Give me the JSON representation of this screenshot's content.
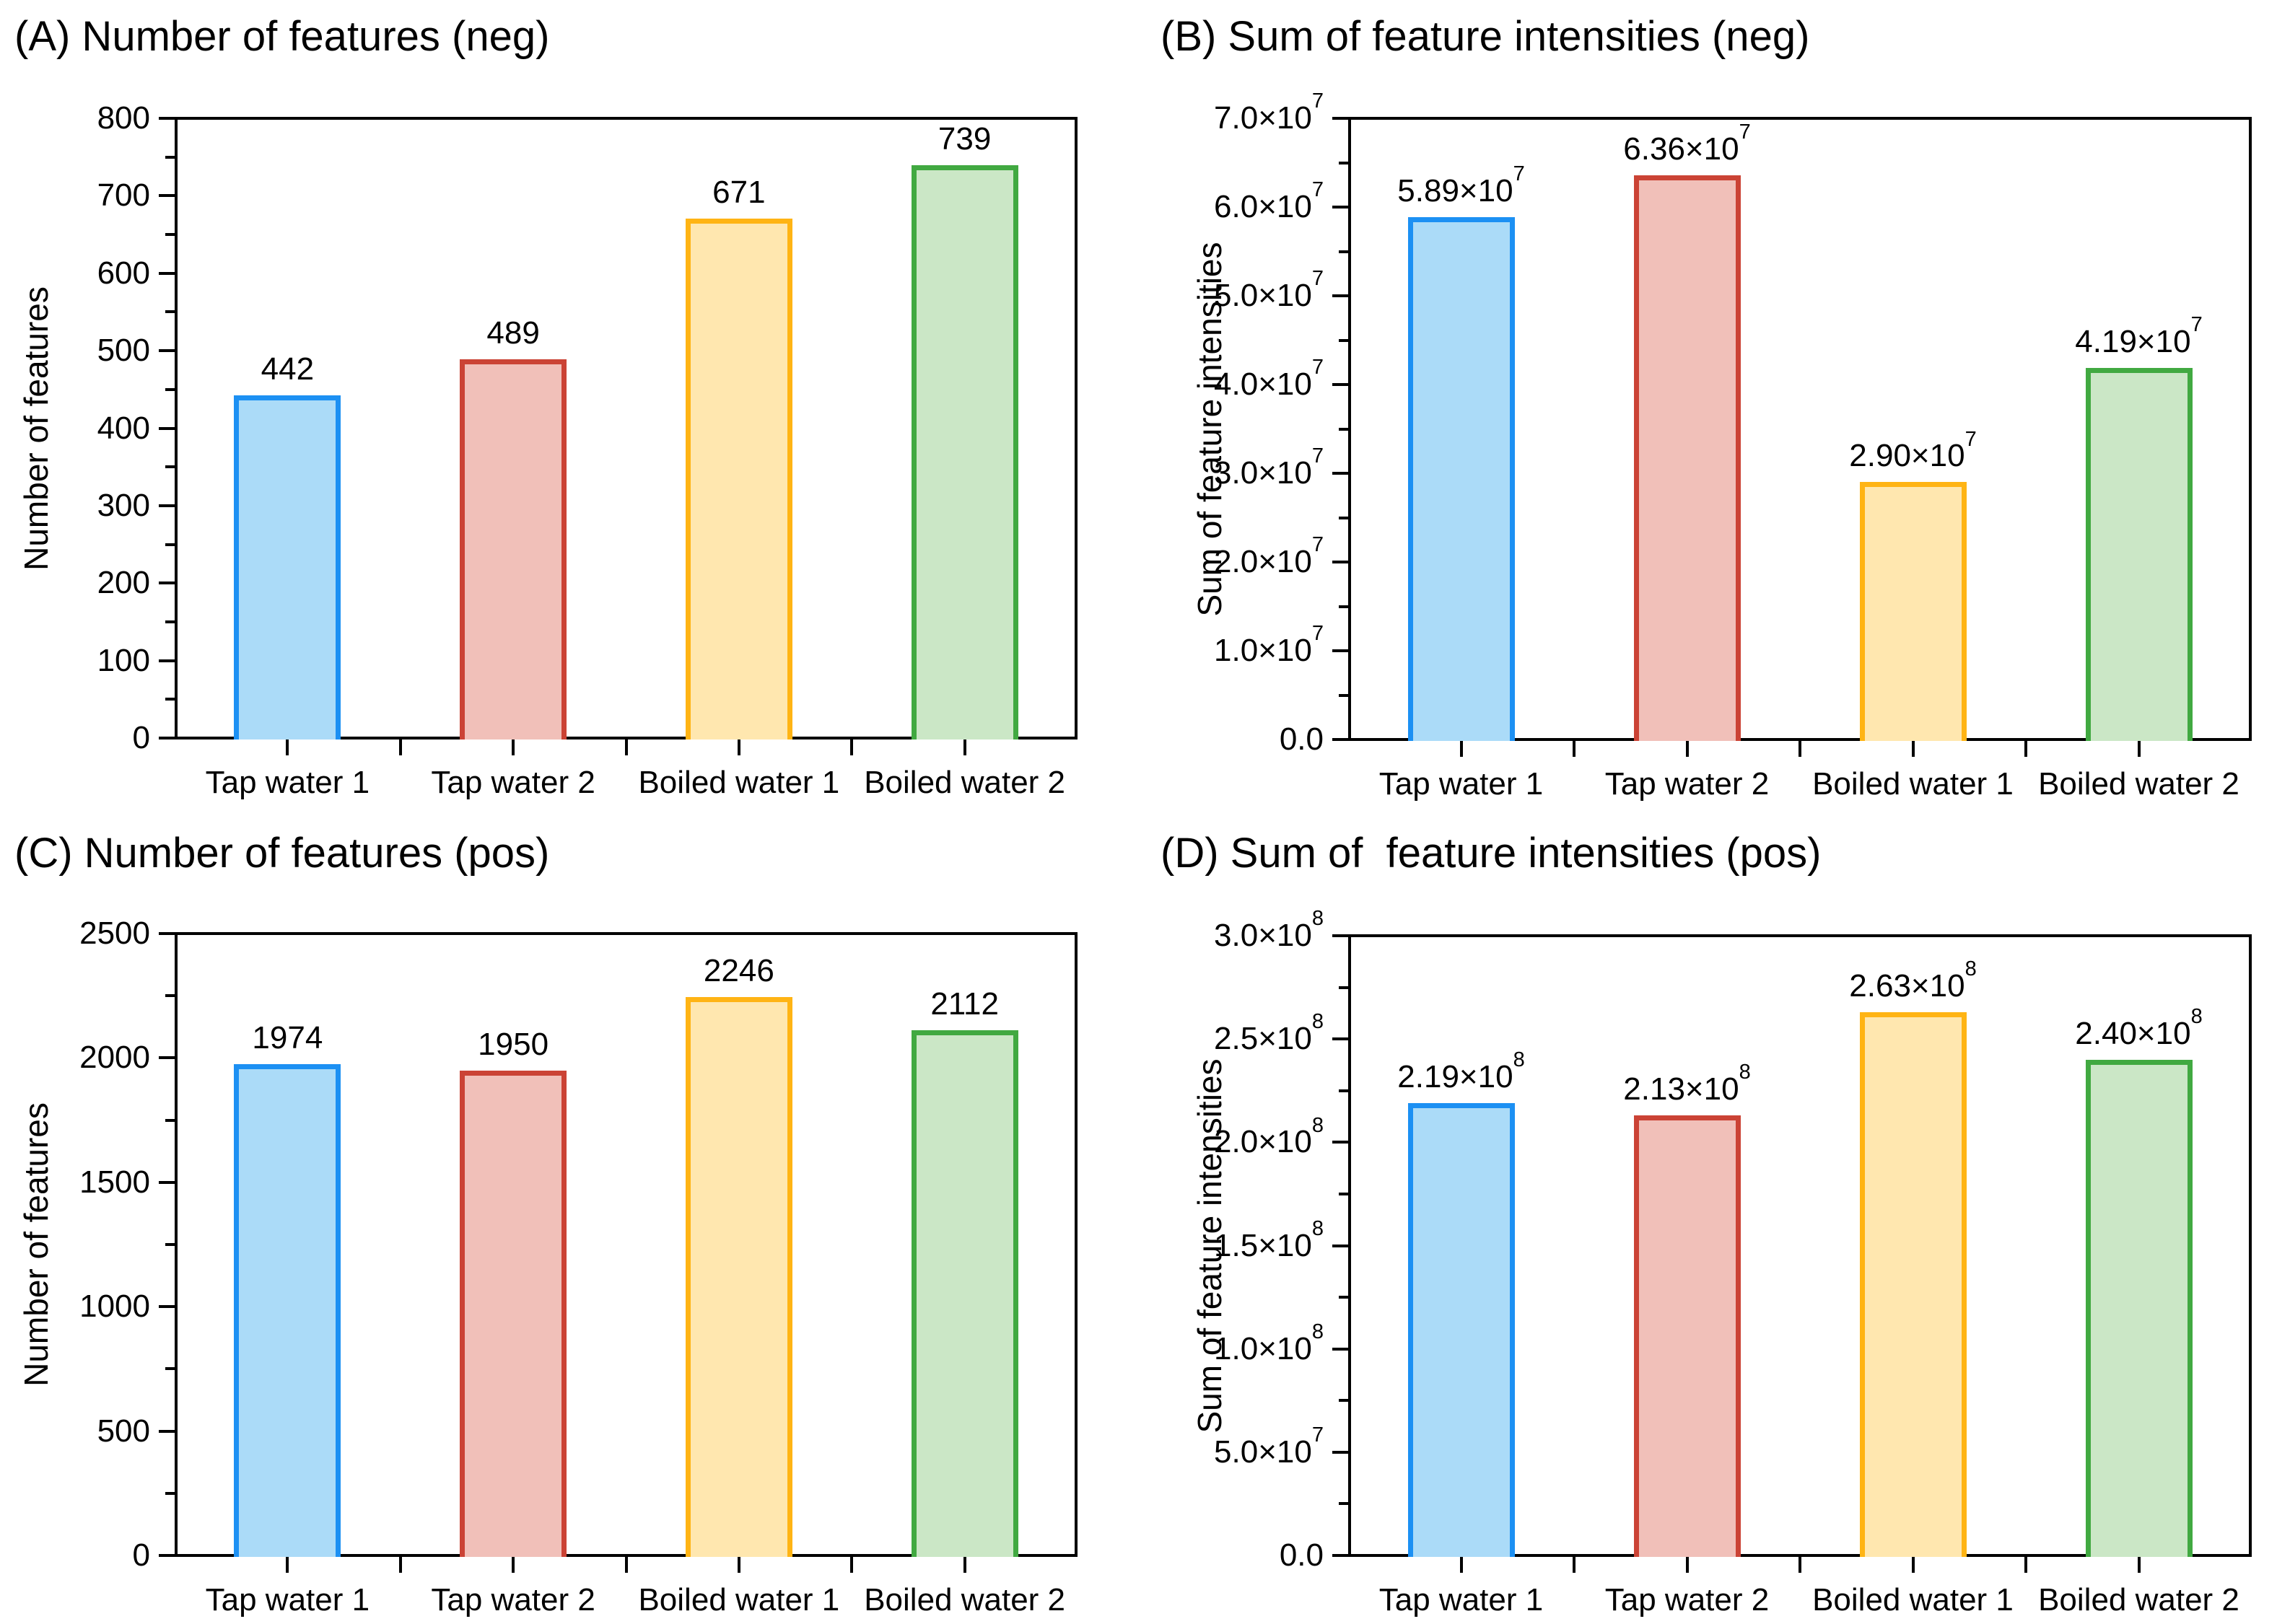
{
  "figure": {
    "background": "#FFFFFF",
    "text_color": "#000000",
    "axis_color": "#000000"
  },
  "series_colors": [
    {
      "category": "Tap water 1",
      "fill": "#ABDBF8",
      "border": "#1C90F3"
    },
    {
      "category": "Tap water 2",
      "fill": "#F1C0B9",
      "border": "#CB4335"
    },
    {
      "category": "Boiled water 1",
      "fill": "#FFE7AF",
      "border": "#FFB414"
    },
    {
      "category": "Boiled water 2",
      "fill": "#CBE7C6",
      "border": "#41A941"
    }
  ],
  "chart_data": [
    {
      "type": "bar",
      "panel_label": "A",
      "title": "(A) Number of features (neg)",
      "ylabel": "Number of features",
      "xlabel": "",
      "categories": [
        "Tap water 1",
        "Tap water 2",
        "Boiled water 1",
        "Boiled water 2"
      ],
      "values": [
        442,
        489,
        671,
        739
      ],
      "bar_labels": [
        "442",
        "489",
        "671",
        "739"
      ],
      "ylim": [
        0,
        800
      ],
      "ytick_step": 100,
      "yticks": [
        "0",
        "100",
        "200",
        "300",
        "400",
        "500",
        "600",
        "700",
        "800"
      ],
      "grid": false,
      "legend": "none"
    },
    {
      "type": "bar",
      "panel_label": "B",
      "title": "(B) Sum of feature intensities (neg)",
      "ylabel": "Sum of feature intensities",
      "xlabel": "",
      "categories": [
        "Tap water 1",
        "Tap water 2",
        "Boiled water 1",
        "Boiled water 2"
      ],
      "values": [
        58900000,
        63600000,
        29000000,
        41900000
      ],
      "bar_labels": [
        {
          "base": "5.89×10",
          "exp": "7"
        },
        {
          "base": "6.36×10",
          "exp": "7"
        },
        {
          "base": "2.90×10",
          "exp": "7"
        },
        {
          "base": "4.19×10",
          "exp": "7"
        }
      ],
      "ylim": [
        0,
        70000000
      ],
      "ytick_step": 10000000,
      "yticks": [
        "0.0",
        {
          "base": "1.0×10",
          "exp": "7"
        },
        {
          "base": "2.0×10",
          "exp": "7"
        },
        {
          "base": "3.0×10",
          "exp": "7"
        },
        {
          "base": "4.0×10",
          "exp": "7"
        },
        {
          "base": "5.0×10",
          "exp": "7"
        },
        {
          "base": "6.0×10",
          "exp": "7"
        },
        {
          "base": "7.0×10",
          "exp": "7"
        }
      ],
      "grid": false,
      "legend": "none"
    },
    {
      "type": "bar",
      "panel_label": "C",
      "title": "(C) Number of features (pos)",
      "ylabel": "Number of features",
      "xlabel": "",
      "categories": [
        "Tap water 1",
        "Tap water 2",
        "Boiled water 1",
        "Boiled water 2"
      ],
      "values": [
        1974,
        1950,
        2246,
        2112
      ],
      "bar_labels": [
        "1974",
        "1950",
        "2246",
        "2112"
      ],
      "ylim": [
        0,
        2500
      ],
      "ytick_step": 500,
      "yticks": [
        "0",
        "500",
        "1000",
        "1500",
        "2000",
        "2500"
      ],
      "grid": false,
      "legend": "none"
    },
    {
      "type": "bar",
      "panel_label": "D",
      "title": "(D) Sum of  feature intensities (pos)",
      "ylabel": "Sum of feature intensities",
      "xlabel": "",
      "categories": [
        "Tap water 1",
        "Tap water 2",
        "Boiled water 1",
        "Boiled water 2"
      ],
      "values": [
        219000000,
        213000000,
        263000000,
        240000000
      ],
      "bar_labels": [
        {
          "base": "2.19×10",
          "exp": "8"
        },
        {
          "base": "2.13×10",
          "exp": "8"
        },
        {
          "base": "2.63×10",
          "exp": "8"
        },
        {
          "base": "2.40×10",
          "exp": "8"
        }
      ],
      "ylim": [
        0,
        300000000
      ],
      "ytick_step": 50000000,
      "yticks": [
        "0.0",
        {
          "base": "5.0×10",
          "exp": "7"
        },
        {
          "base": "1.0×10",
          "exp": "8"
        },
        {
          "base": "1.5×10",
          "exp": "8"
        },
        {
          "base": "2.0×10",
          "exp": "8"
        },
        {
          "base": "2.5×10",
          "exp": "8"
        },
        {
          "base": "3.0×10",
          "exp": "8"
        }
      ],
      "grid": false,
      "legend": "none"
    }
  ]
}
